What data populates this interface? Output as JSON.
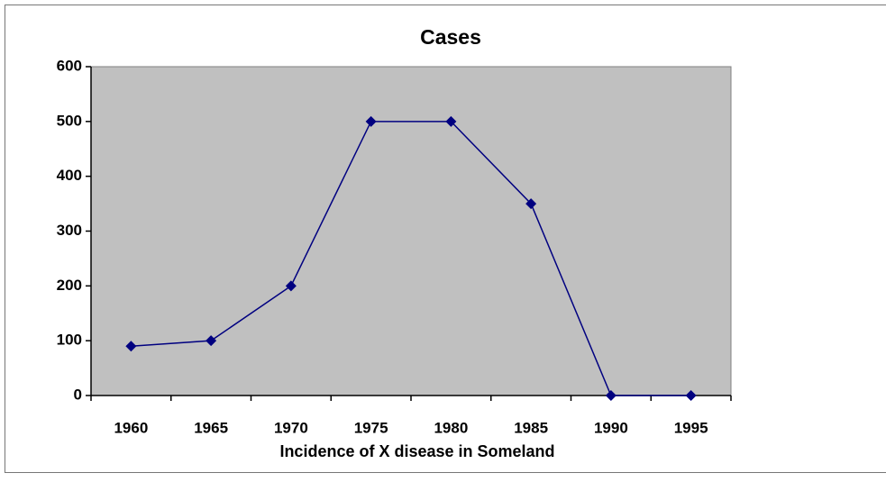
{
  "chart_data": {
    "type": "line",
    "title": "Cases",
    "x_label": "Incidence of X disease in Someland",
    "categories": [
      "1960",
      "1965",
      "1970",
      "1975",
      "1980",
      "1985",
      "1990",
      "1995"
    ],
    "series": [
      {
        "name": "Cases",
        "color": "#000080",
        "values": [
          90,
          100,
          200,
          500,
          500,
          350,
          0,
          0
        ]
      }
    ],
    "ylim": [
      0,
      600
    ],
    "yticks": [
      0,
      100,
      200,
      300,
      400,
      500,
      600
    ],
    "plot_background": "#c0c0c0"
  }
}
